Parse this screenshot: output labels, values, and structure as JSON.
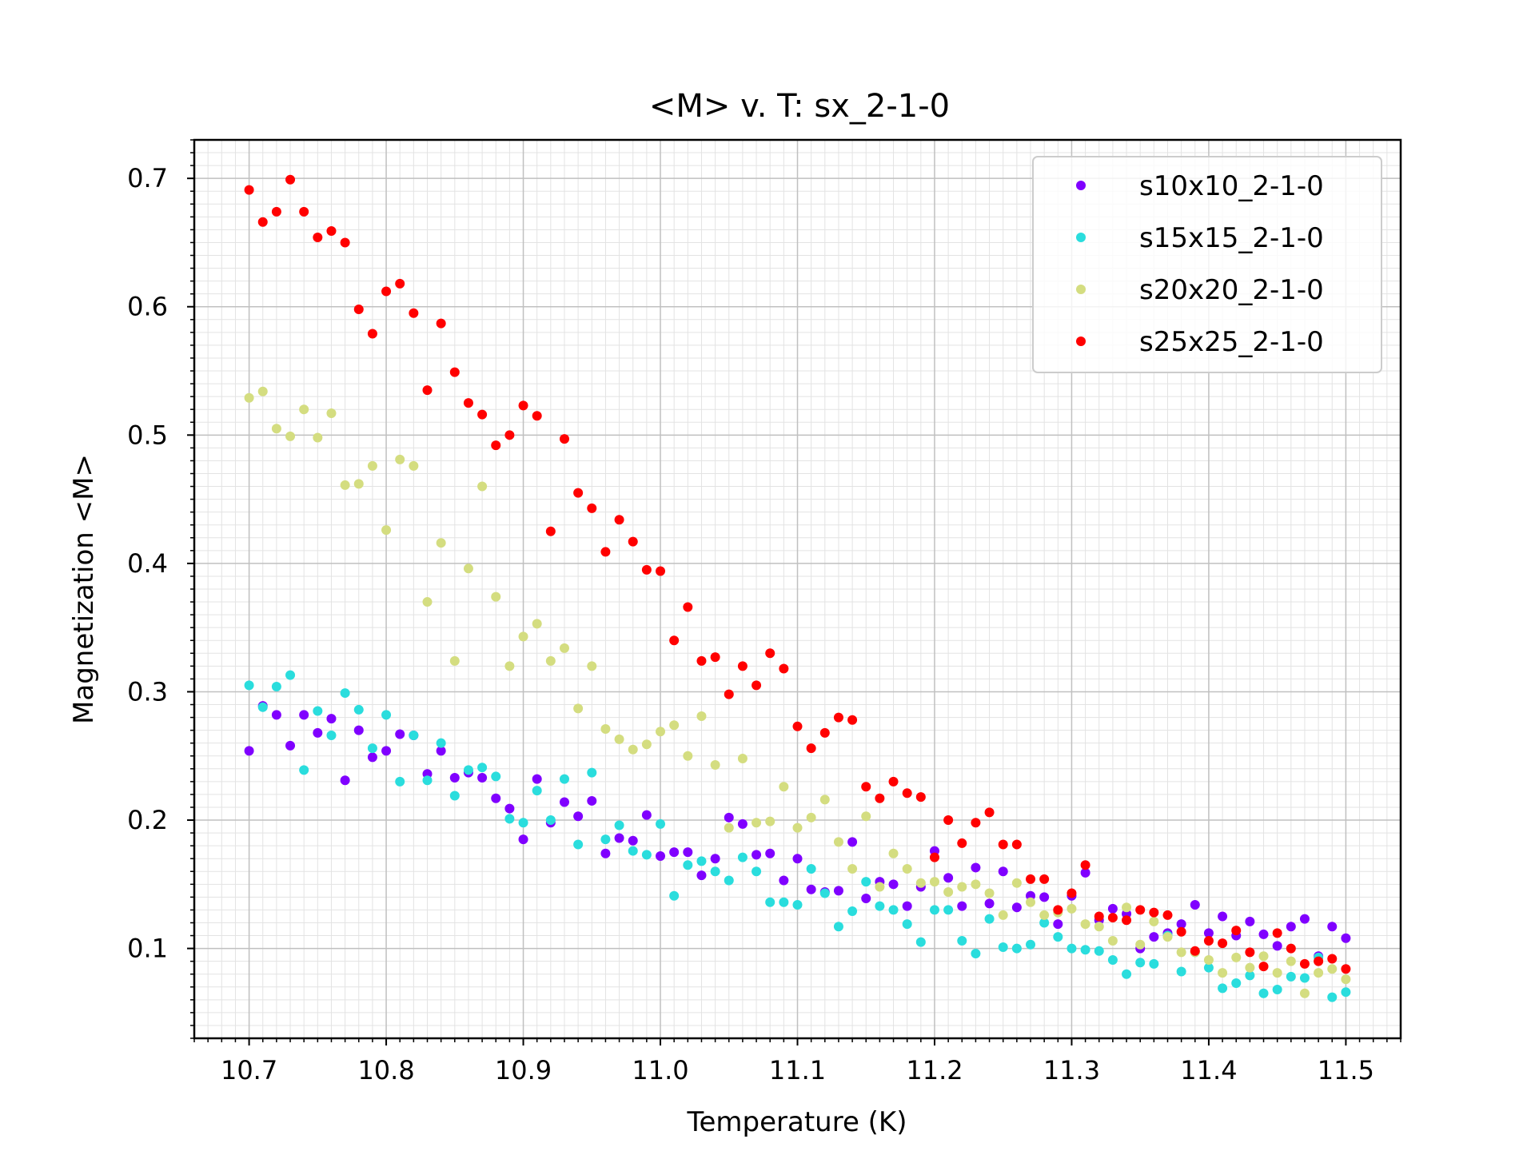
{
  "chart_data": {
    "type": "scatter",
    "title": "<M> v. T: sx_2-1-0",
    "xlabel": "Temperature (K)",
    "ylabel": "Magnetization <M>",
    "xlim": [
      10.66,
      11.54
    ],
    "ylim": [
      0.03,
      0.73
    ],
    "xticks": [
      10.7,
      10.8,
      10.9,
      11.0,
      11.1,
      11.2,
      11.3,
      11.4,
      11.5
    ],
    "xtick_labels": [
      "10.7",
      "10.8",
      "10.9",
      "11.0",
      "11.1",
      "11.2",
      "11.3",
      "11.4",
      "11.5"
    ],
    "yticks": [
      0.1,
      0.2,
      0.3,
      0.4,
      0.5,
      0.6,
      0.7
    ],
    "ytick_labels": [
      "0.1",
      "0.2",
      "0.3",
      "0.4",
      "0.5",
      "0.6",
      "0.7"
    ],
    "grid": "major and minor",
    "legend_position": "upper right",
    "x": [
      10.7,
      10.71,
      10.72,
      10.73,
      10.74,
      10.75,
      10.76,
      10.77,
      10.78,
      10.79,
      10.8,
      10.81,
      10.82,
      10.83,
      10.84,
      10.85,
      10.86,
      10.87,
      10.88,
      10.89,
      10.9,
      10.91,
      10.92,
      10.93,
      10.94,
      10.95,
      10.96,
      10.97,
      10.98,
      10.99,
      11.0,
      11.01,
      11.02,
      11.03,
      11.04,
      11.05,
      11.06,
      11.07,
      11.08,
      11.09,
      11.1,
      11.11,
      11.12,
      11.13,
      11.14,
      11.15,
      11.16,
      11.17,
      11.18,
      11.19,
      11.2,
      11.21,
      11.22,
      11.23,
      11.24,
      11.25,
      11.26,
      11.27,
      11.28,
      11.29,
      11.3,
      11.31,
      11.32,
      11.33,
      11.34,
      11.35,
      11.36,
      11.37,
      11.38,
      11.39,
      11.4,
      11.41,
      11.42,
      11.43,
      11.44,
      11.45,
      11.46,
      11.47,
      11.48,
      11.49,
      11.5
    ],
    "series": [
      {
        "name": "s10x10_2-1-0",
        "color": "#8000ff",
        "values": [
          0.254,
          0.289,
          0.282,
          0.258,
          0.282,
          0.268,
          0.279,
          0.231,
          0.27,
          0.249,
          0.254,
          0.267,
          0.266,
          0.236,
          0.254,
          0.233,
          0.237,
          0.233,
          0.217,
          0.209,
          0.185,
          0.232,
          0.198,
          0.214,
          0.203,
          0.215,
          0.174,
          0.186,
          0.184,
          0.204,
          0.172,
          0.175,
          0.175,
          0.157,
          0.17,
          0.202,
          0.197,
          0.173,
          0.174,
          0.153,
          0.17,
          0.146,
          0.144,
          0.145,
          0.183,
          0.139,
          0.152,
          0.15,
          0.133,
          0.148,
          0.176,
          0.155,
          0.133,
          0.163,
          0.135,
          0.16,
          0.132,
          0.141,
          0.14,
          0.119,
          0.141,
          0.159,
          0.122,
          0.131,
          0.127,
          0.1,
          0.109,
          0.112,
          0.119,
          0.134,
          0.112,
          0.125,
          0.11,
          0.121,
          0.111,
          0.102,
          0.117,
          0.123,
          0.094,
          0.117,
          0.108
        ]
      },
      {
        "name": "s15x15_2-1-0",
        "color": "#2adddd",
        "values": [
          0.305,
          0.288,
          0.304,
          0.313,
          0.239,
          0.285,
          0.266,
          0.299,
          0.286,
          0.256,
          0.282,
          0.23,
          0.266,
          0.231,
          0.26,
          0.219,
          0.239,
          0.241,
          0.234,
          0.201,
          0.198,
          0.223,
          0.2,
          0.232,
          0.181,
          0.237,
          0.185,
          0.196,
          0.176,
          0.173,
          0.197,
          0.141,
          0.165,
          0.168,
          0.16,
          0.153,
          0.171,
          0.16,
          0.136,
          0.136,
          0.134,
          0.162,
          0.143,
          0.117,
          0.129,
          0.152,
          0.133,
          0.13,
          0.119,
          0.105,
          0.13,
          0.13,
          0.106,
          0.096,
          0.123,
          0.101,
          0.1,
          0.103,
          0.12,
          0.109,
          0.1,
          0.099,
          0.098,
          0.091,
          0.08,
          0.089,
          0.088,
          0.11,
          0.082,
          0.097,
          0.085,
          0.069,
          0.073,
          0.079,
          0.065,
          0.068,
          0.078,
          0.077,
          0.093,
          0.062,
          0.066
        ]
      },
      {
        "name": "s20x20_2-1-0",
        "color": "#d4dd80",
        "values": [
          0.529,
          0.534,
          0.505,
          0.499,
          0.52,
          0.498,
          0.517,
          0.461,
          0.462,
          0.476,
          0.426,
          0.481,
          0.476,
          0.37,
          0.416,
          0.324,
          0.396,
          0.46,
          0.374,
          0.32,
          0.343,
          0.353,
          0.324,
          0.334,
          0.287,
          0.32,
          0.271,
          0.263,
          0.255,
          0.259,
          0.269,
          0.274,
          0.25,
          0.281,
          0.243,
          0.194,
          0.248,
          0.198,
          0.199,
          0.226,
          0.194,
          0.202,
          0.216,
          0.183,
          0.162,
          0.203,
          0.148,
          0.174,
          0.162,
          0.151,
          0.152,
          0.144,
          0.148,
          0.15,
          0.143,
          0.126,
          0.151,
          0.136,
          0.126,
          0.128,
          0.131,
          0.119,
          0.117,
          0.106,
          0.132,
          0.103,
          0.121,
          0.109,
          0.097,
          0.097,
          0.091,
          0.081,
          0.093,
          0.085,
          0.094,
          0.081,
          0.09,
          0.065,
          0.081,
          0.084,
          0.076
        ]
      },
      {
        "name": "s25x25_2-1-0",
        "color": "#ff0000",
        "values": [
          0.691,
          0.666,
          0.674,
          0.699,
          0.674,
          0.654,
          0.659,
          0.65,
          0.598,
          0.579,
          0.612,
          0.618,
          0.595,
          0.535,
          0.587,
          0.549,
          0.525,
          0.516,
          0.492,
          0.5,
          0.523,
          0.515,
          0.425,
          0.497,
          0.455,
          0.443,
          0.409,
          0.434,
          0.417,
          0.395,
          0.394,
          0.34,
          0.366,
          0.324,
          0.327,
          0.298,
          0.32,
          0.305,
          0.33,
          0.318,
          0.273,
          0.256,
          0.268,
          0.28,
          0.278,
          0.226,
          0.217,
          0.23,
          0.221,
          0.218,
          0.171,
          0.2,
          0.182,
          0.198,
          0.206,
          0.181,
          0.181,
          0.154,
          0.154,
          0.13,
          0.143,
          0.165,
          0.125,
          0.124,
          0.122,
          0.13,
          0.128,
          0.126,
          0.113,
          0.098,
          0.106,
          0.104,
          0.114,
          0.097,
          0.086,
          0.112,
          0.1,
          0.088,
          0.09,
          0.092,
          0.084
        ]
      }
    ]
  }
}
